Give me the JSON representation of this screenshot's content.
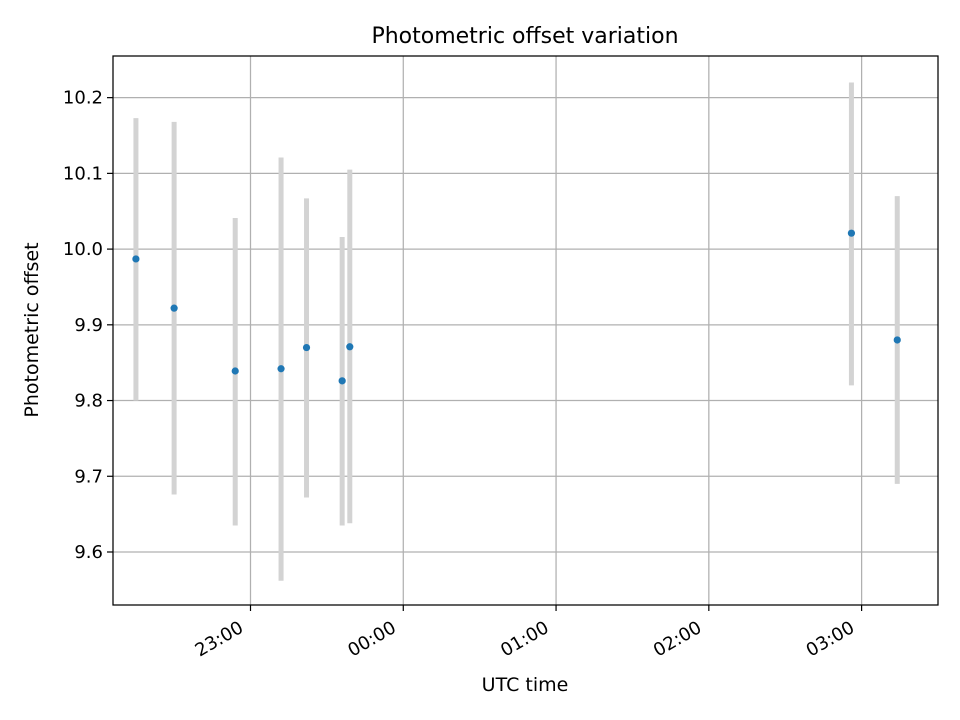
{
  "chart_data": {
    "type": "scatter",
    "title": "Photometric offset variation",
    "xlabel": "UTC time",
    "ylabel": "Photometric offset",
    "x_tick_labels": [
      "23:00",
      "00:00",
      "01:00",
      "02:00",
      "03:00"
    ],
    "x_tick_values": [
      "23:00",
      "00:00",
      "01:00",
      "02:00",
      "03:00"
    ],
    "y_tick_labels": [
      "9.6",
      "9.7",
      "9.8",
      "9.9",
      "10.0",
      "10.1",
      "10.2"
    ],
    "y_tick_values": [
      9.6,
      9.7,
      9.8,
      9.9,
      10.0,
      10.1,
      10.2
    ],
    "xlim": [
      "22:06",
      "03:30"
    ],
    "ylim": [
      9.53,
      10.255
    ],
    "grid": true,
    "legend": "none",
    "colors": {
      "point": "#1f77b4",
      "errorbar": "#d3d3d3",
      "grid": "#b0b0b0",
      "axes": "#000000"
    },
    "series": [
      {
        "points": [
          {
            "x": "22:15",
            "y": 9.987,
            "ylow": 9.8,
            "yhigh": 10.173
          },
          {
            "x": "22:30",
            "y": 9.922,
            "ylow": 9.676,
            "yhigh": 10.168
          },
          {
            "x": "22:54",
            "y": 9.839,
            "ylow": 9.635,
            "yhigh": 10.041
          },
          {
            "x": "23:12",
            "y": 9.842,
            "ylow": 9.562,
            "yhigh": 10.121
          },
          {
            "x": "23:22",
            "y": 9.87,
            "ylow": 9.672,
            "yhigh": 10.067
          },
          {
            "x": "23:36",
            "y": 9.826,
            "ylow": 9.635,
            "yhigh": 10.016
          },
          {
            "x": "23:39",
            "y": 9.871,
            "ylow": 9.638,
            "yhigh": 10.105
          },
          {
            "x": "02:56",
            "y": 10.021,
            "ylow": 9.82,
            "yhigh": 10.22
          },
          {
            "x": "03:14",
            "y": 9.88,
            "ylow": 9.69,
            "yhigh": 10.07
          }
        ]
      }
    ]
  }
}
